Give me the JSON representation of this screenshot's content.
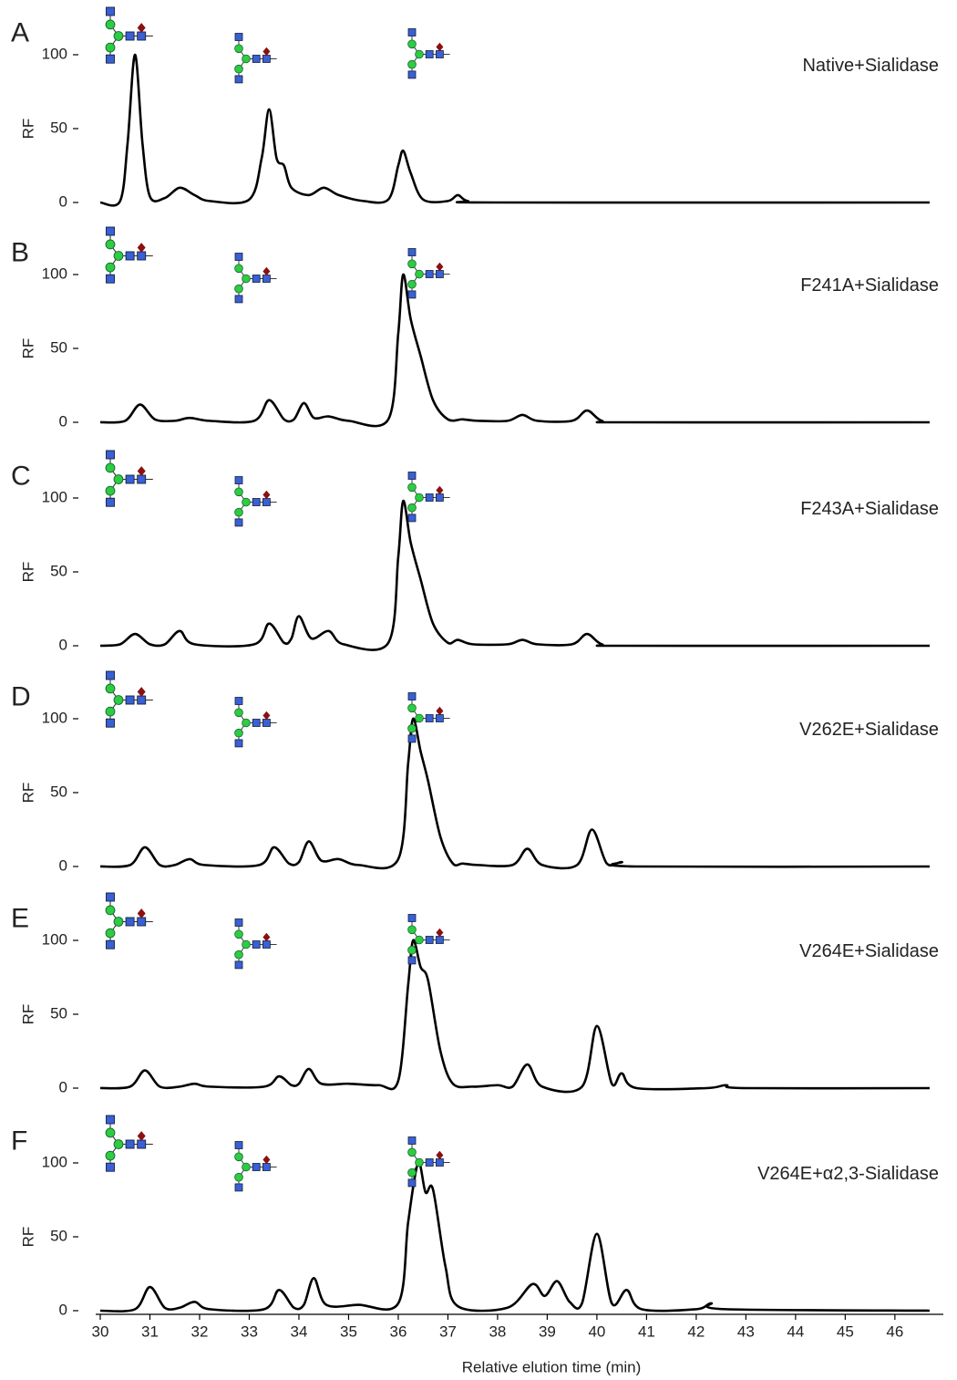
{
  "chart_data": [
    {
      "type": "line",
      "panel": "A",
      "annotation": "Native+Sialidase",
      "y_label": "RF",
      "xlim": [
        30,
        46.7
      ],
      "ylim": [
        0,
        125
      ],
      "yticks": [
        0,
        50,
        100
      ],
      "x": [
        30,
        30.4,
        30.55,
        30.7,
        30.85,
        31.0,
        31.3,
        31.6,
        31.9,
        32.2,
        33.0,
        33.25,
        33.4,
        33.55,
        33.7,
        33.85,
        34.2,
        34.5,
        34.8,
        35.3,
        35.8,
        36.0,
        36.1,
        36.25,
        36.5,
        37.0,
        37.2,
        37.4,
        38,
        46.7
      ],
      "values": [
        0,
        1,
        40,
        100,
        40,
        4,
        3,
        10,
        5,
        1,
        2,
        30,
        63,
        30,
        25,
        10,
        5,
        10,
        5,
        1,
        2,
        25,
        35,
        20,
        2,
        1,
        5,
        1,
        0,
        0
      ]
    },
    {
      "type": "line",
      "panel": "B",
      "annotation": "F241A+Sialidase",
      "y_label": "RF",
      "xlim": [
        30,
        46.7
      ],
      "ylim": [
        0,
        125
      ],
      "yticks": [
        0,
        50,
        100
      ],
      "x": [
        30,
        30.5,
        30.8,
        31.1,
        31.5,
        31.8,
        32.2,
        33.1,
        33.4,
        33.7,
        33.9,
        34.1,
        34.3,
        34.6,
        35.0,
        35.8,
        36.0,
        36.1,
        36.25,
        36.45,
        36.7,
        37.0,
        37.3,
        37.6,
        38.2,
        38.5,
        38.8,
        39.5,
        39.8,
        40.1,
        40.6,
        46.7
      ],
      "values": [
        0,
        1,
        12,
        2,
        1,
        3,
        1,
        1,
        15,
        2,
        2,
        13,
        3,
        4,
        1,
        2,
        60,
        100,
        70,
        45,
        15,
        2,
        2,
        1,
        1,
        5,
        1,
        1,
        8,
        1,
        0,
        0
      ]
    },
    {
      "type": "line",
      "panel": "C",
      "annotation": "F243A+Sialidase",
      "y_label": "RF",
      "xlim": [
        30,
        46.7
      ],
      "ylim": [
        0,
        125
      ],
      "yticks": [
        0,
        50,
        100
      ],
      "x": [
        30,
        30.4,
        30.7,
        31.0,
        31.3,
        31.6,
        31.9,
        33.1,
        33.4,
        33.7,
        33.85,
        34.0,
        34.25,
        34.6,
        34.9,
        35.8,
        36.0,
        36.1,
        36.25,
        36.45,
        36.7,
        37.0,
        37.2,
        37.5,
        38.2,
        38.5,
        38.8,
        39.5,
        39.8,
        40.1,
        40.6,
        46.7
      ],
      "values": [
        0,
        1,
        8,
        1,
        1,
        10,
        1,
        1,
        15,
        2,
        5,
        20,
        5,
        10,
        1,
        2,
        60,
        98,
        70,
        45,
        15,
        2,
        4,
        1,
        1,
        4,
        1,
        1,
        8,
        1,
        0,
        0
      ]
    },
    {
      "type": "line",
      "panel": "D",
      "annotation": "V262E+Sialidase",
      "y_label": "RF",
      "xlim": [
        30,
        46.7
      ],
      "ylim": [
        0,
        125
      ],
      "yticks": [
        0,
        50,
        100
      ],
      "x": [
        30,
        30.6,
        30.9,
        31.2,
        31.5,
        31.8,
        32.1,
        33.2,
        33.5,
        33.8,
        34.0,
        34.2,
        34.45,
        34.8,
        35.2,
        36.0,
        36.2,
        36.3,
        36.45,
        36.6,
        36.85,
        37.1,
        37.3,
        37.6,
        38.3,
        38.6,
        38.9,
        39.6,
        39.9,
        40.2,
        40.5,
        40.8,
        46.7
      ],
      "values": [
        0,
        1,
        13,
        1,
        1,
        5,
        1,
        1,
        13,
        2,
        3,
        17,
        4,
        5,
        1,
        5,
        70,
        100,
        78,
        58,
        20,
        2,
        2,
        1,
        1,
        12,
        1,
        1,
        25,
        2,
        3,
        0,
        0
      ]
    },
    {
      "type": "line",
      "panel": "E",
      "annotation": "V264E+Sialidase",
      "y_label": "RF",
      "xlim": [
        30,
        46.7
      ],
      "ylim": [
        0,
        125
      ],
      "yticks": [
        0,
        50,
        100
      ],
      "x": [
        30,
        30.6,
        30.9,
        31.2,
        31.6,
        31.9,
        32.2,
        33.3,
        33.6,
        33.85,
        34.0,
        34.2,
        34.45,
        35.0,
        35.6,
        36.0,
        36.2,
        36.3,
        36.45,
        36.6,
        36.85,
        37.1,
        37.5,
        38.0,
        38.3,
        38.6,
        38.9,
        39.7,
        40.0,
        40.3,
        40.5,
        40.8,
        42.2,
        42.6,
        43.0,
        46.7
      ],
      "values": [
        0,
        1,
        12,
        1,
        1,
        3,
        1,
        1,
        8,
        2,
        3,
        13,
        3,
        3,
        2,
        5,
        70,
        100,
        82,
        73,
        25,
        3,
        1,
        2,
        1,
        16,
        1,
        1,
        42,
        3,
        10,
        0,
        0,
        2,
        0,
        0
      ]
    },
    {
      "type": "line",
      "panel": "F",
      "annotation": "V264E+α2,3-Sialidase",
      "y_label": "RF",
      "x_label": "Relative elution time (min)",
      "xlim": [
        30,
        46.7
      ],
      "ylim": [
        0,
        125
      ],
      "yticks": [
        0,
        50,
        100
      ],
      "xticks": [
        30,
        31,
        32,
        33,
        34,
        35,
        36,
        37,
        38,
        39,
        40,
        41,
        42,
        43,
        44,
        45,
        46
      ],
      "x": [
        30,
        30.7,
        31.0,
        31.3,
        31.6,
        31.9,
        32.2,
        33.3,
        33.6,
        33.9,
        34.1,
        34.3,
        34.55,
        35.2,
        36.0,
        36.2,
        36.4,
        36.55,
        36.7,
        36.95,
        37.2,
        38.2,
        38.7,
        38.95,
        39.2,
        39.45,
        39.7,
        40.0,
        40.3,
        40.6,
        40.9,
        42.0,
        42.3,
        42.6,
        46.7
      ],
      "values": [
        0,
        1,
        16,
        2,
        2,
        6,
        1,
        1,
        14,
        2,
        4,
        22,
        4,
        4,
        5,
        60,
        100,
        80,
        82,
        30,
        3,
        2,
        18,
        10,
        20,
        6,
        5,
        52,
        5,
        14,
        1,
        1,
        5,
        1,
        0
      ]
    }
  ]
}
